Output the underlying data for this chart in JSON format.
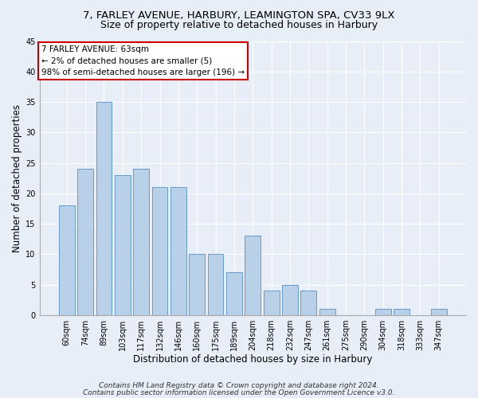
{
  "title1": "7, FARLEY AVENUE, HARBURY, LEAMINGTON SPA, CV33 9LX",
  "title2": "Size of property relative to detached houses in Harbury",
  "xlabel": "Distribution of detached houses by size in Harbury",
  "ylabel": "Number of detached properties",
  "categories": [
    "60sqm",
    "74sqm",
    "89sqm",
    "103sqm",
    "117sqm",
    "132sqm",
    "146sqm",
    "160sqm",
    "175sqm",
    "189sqm",
    "204sqm",
    "218sqm",
    "232sqm",
    "247sqm",
    "261sqm",
    "275sqm",
    "290sqm",
    "304sqm",
    "318sqm",
    "333sqm",
    "347sqm"
  ],
  "values": [
    18,
    24,
    35,
    23,
    24,
    21,
    21,
    10,
    10,
    7,
    13,
    4,
    5,
    4,
    1,
    0,
    0,
    1,
    1,
    0,
    1
  ],
  "bar_color": "#b8d0e8",
  "bar_edge_color": "#6699cc",
  "annotation_text": "7 FARLEY AVENUE: 63sqm\n← 2% of detached houses are smaller (5)\n98% of semi-detached houses are larger (196) →",
  "annotation_box_color": "white",
  "annotation_box_edge_color": "#cc0000",
  "footer1": "Contains HM Land Registry data © Crown copyright and database right 2024.",
  "footer2": "Contains public sector information licensed under the Open Government Licence v3.0.",
  "ylim": [
    0,
    45
  ],
  "yticks": [
    0,
    5,
    10,
    15,
    20,
    25,
    30,
    35,
    40,
    45
  ],
  "background_color": "#e8eef8",
  "grid_color": "#ffffff",
  "title1_fontsize": 9.5,
  "title2_fontsize": 9,
  "xlabel_fontsize": 8.5,
  "ylabel_fontsize": 8.5,
  "tick_fontsize": 7,
  "annotation_fontsize": 7.5,
  "footer_fontsize": 6.5
}
